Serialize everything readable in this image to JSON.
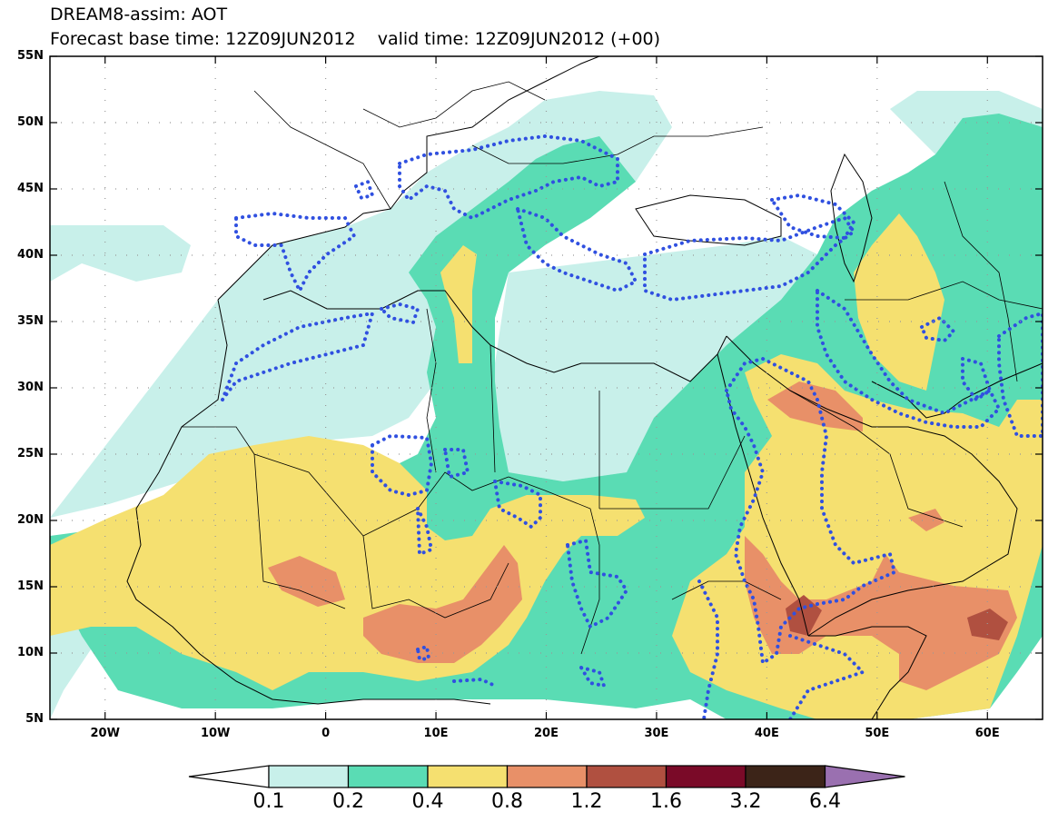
{
  "title": {
    "line1": "DREAM8-assim: AOT",
    "line2": "Forecast base time: 12Z09JUN2012    valid time: 12Z09JUN2012 (+00)"
  },
  "axes": {
    "lat_labels": [
      "55N",
      "50N",
      "45N",
      "40N",
      "35N",
      "30N",
      "25N",
      "20N",
      "15N",
      "10N",
      "5N"
    ],
    "lon_labels": [
      "20W",
      "10W",
      "0",
      "10E",
      "20E",
      "30E",
      "40E",
      "50E",
      "60E"
    ]
  },
  "colorbar": {
    "labels": [
      "0.1",
      "0.2",
      "0.4",
      "0.8",
      "1.2",
      "1.6",
      "3.2",
      "6.4"
    ],
    "colors": [
      "#ffffff",
      "#c8f0ea",
      "#5adcb4",
      "#f5e070",
      "#e89068",
      "#b05040",
      "#7a0a28",
      "#3c2418",
      "#9a70b0"
    ]
  },
  "map": {
    "ocean_color": "#ffffff",
    "coastline_color": "#000000",
    "dotted_contour_color": "#3050e0"
  }
}
